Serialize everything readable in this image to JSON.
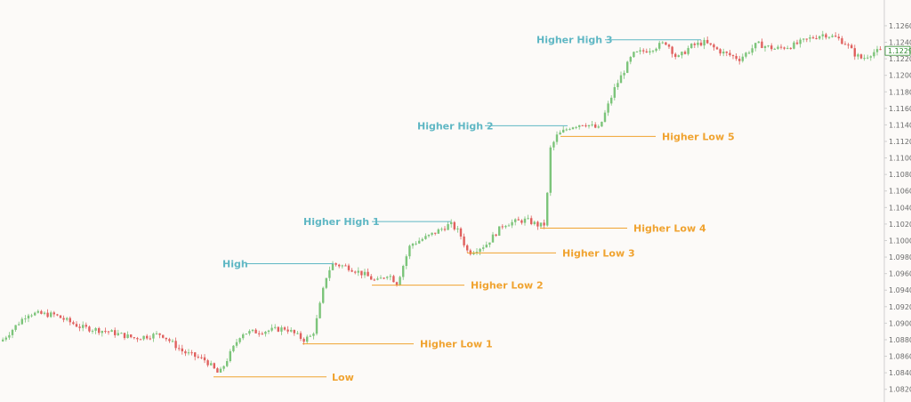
{
  "colors": {
    "background": "#fcfaf8",
    "bull": "#7cc47a",
    "bear": "#e0605e",
    "high_line": "#5fb7c4",
    "low_line": "#f0a330",
    "axis": "#cfcfcf",
    "price_tag": "#2f8a2f"
  },
  "chart_data": {
    "type": "candlestick",
    "title": "",
    "xlabel": "",
    "ylabel": "",
    "ylim": [
      1.081,
      1.1275
    ],
    "y_ticks": [
      "1.12600",
      "1.12400",
      "1.12200",
      "1.12000",
      "1.11800",
      "1.11600",
      "1.11400",
      "1.11200",
      "1.11000",
      "1.10800",
      "1.10600",
      "1.10400",
      "1.10200",
      "1.10000",
      "1.09800",
      "1.09600",
      "1.09400",
      "1.09200",
      "1.09000",
      "1.08800",
      "1.08600",
      "1.08400",
      "1.08200"
    ],
    "current_price": "1.12296",
    "swing_levels": [
      {
        "label": "High",
        "kind": "high",
        "price": 1.0972
      },
      {
        "label": "Higher High 1",
        "kind": "high",
        "price": 1.1023
      },
      {
        "label": "Higher High 2",
        "kind": "high",
        "price": 1.1139
      },
      {
        "label": "Higher High 3",
        "kind": "high",
        "price": 1.1243
      },
      {
        "label": "Low",
        "kind": "low",
        "price": 1.0835
      },
      {
        "label": "Higher Low 1",
        "kind": "low",
        "price": 1.0875
      },
      {
        "label": "Higher Low 2",
        "kind": "low",
        "price": 1.0946
      },
      {
        "label": "Higher Low 3",
        "kind": "low",
        "price": 1.0985
      },
      {
        "label": "Higher Low 4",
        "kind": "low",
        "price": 1.1015
      },
      {
        "label": "Higher Low 5",
        "kind": "low",
        "price": 1.1126
      }
    ],
    "close_path": [
      [
        0,
        1.0878
      ],
      [
        30,
        1.0912
      ],
      [
        60,
        1.091
      ],
      [
        90,
        1.0895
      ],
      [
        120,
        1.089
      ],
      [
        150,
        1.0882
      ],
      [
        180,
        1.0887
      ],
      [
        205,
        1.0865
      ],
      [
        230,
        1.0855
      ],
      [
        245,
        1.0838
      ],
      [
        270,
        1.0888
      ],
      [
        300,
        1.0891
      ],
      [
        320,
        1.0894
      ],
      [
        340,
        1.088
      ],
      [
        350,
        1.0885
      ],
      [
        355,
        1.0905
      ],
      [
        365,
        1.0955
      ],
      [
        372,
        1.0972
      ],
      [
        390,
        1.0968
      ],
      [
        410,
        1.0958
      ],
      [
        422,
        1.095
      ],
      [
        435,
        1.096
      ],
      [
        445,
        1.0948
      ],
      [
        460,
        1.0995
      ],
      [
        480,
        1.1005
      ],
      [
        505,
        1.102
      ],
      [
        515,
        1.101
      ],
      [
        525,
        1.0985
      ],
      [
        545,
        1.0995
      ],
      [
        565,
        1.102
      ],
      [
        590,
        1.1025
      ],
      [
        605,
        1.1018
      ],
      [
        612,
        1.102
      ],
      [
        617,
        1.111
      ],
      [
        625,
        1.1127
      ],
      [
        640,
        1.1138
      ],
      [
        655,
        1.1142
      ],
      [
        672,
        1.1135
      ],
      [
        690,
        1.1185
      ],
      [
        710,
        1.1225
      ],
      [
        730,
        1.1232
      ],
      [
        748,
        1.124
      ],
      [
        760,
        1.122
      ],
      [
        775,
        1.1235
      ],
      [
        790,
        1.124
      ],
      [
        810,
        1.1228
      ],
      [
        830,
        1.122
      ],
      [
        850,
        1.1238
      ],
      [
        870,
        1.1232
      ],
      [
        890,
        1.1236
      ],
      [
        910,
        1.1245
      ],
      [
        925,
        1.125
      ],
      [
        940,
        1.1245
      ],
      [
        950,
        1.1238
      ],
      [
        960,
        1.1225
      ],
      [
        968,
        1.122
      ],
      [
        980,
        1.1228
      ],
      [
        993,
        1.123
      ]
    ]
  }
}
